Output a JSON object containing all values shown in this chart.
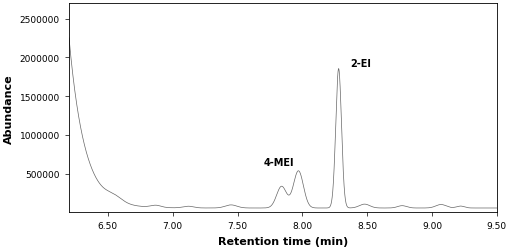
{
  "title": "",
  "xlabel": "Retention time (min)",
  "ylabel": "Abundance",
  "xlim": [
    6.2,
    9.5
  ],
  "ylim": [
    0,
    2700000
  ],
  "yticks": [
    500000,
    1000000,
    1500000,
    2000000,
    2500000
  ],
  "xticks": [
    6.5,
    7.0,
    7.5,
    8.0,
    8.5,
    9.0,
    9.5
  ],
  "peak1_label": "4-MEI",
  "peak1_rt": 7.92,
  "peak1_height": 480000,
  "peak2_label": "2-EI",
  "peak2_rt": 8.28,
  "peak2_height": 1800000,
  "line_color": "#666666",
  "bg_color": "#ffffff",
  "label_fontsize": 7,
  "axis_fontsize": 8,
  "tick_fontsize": 6.5
}
